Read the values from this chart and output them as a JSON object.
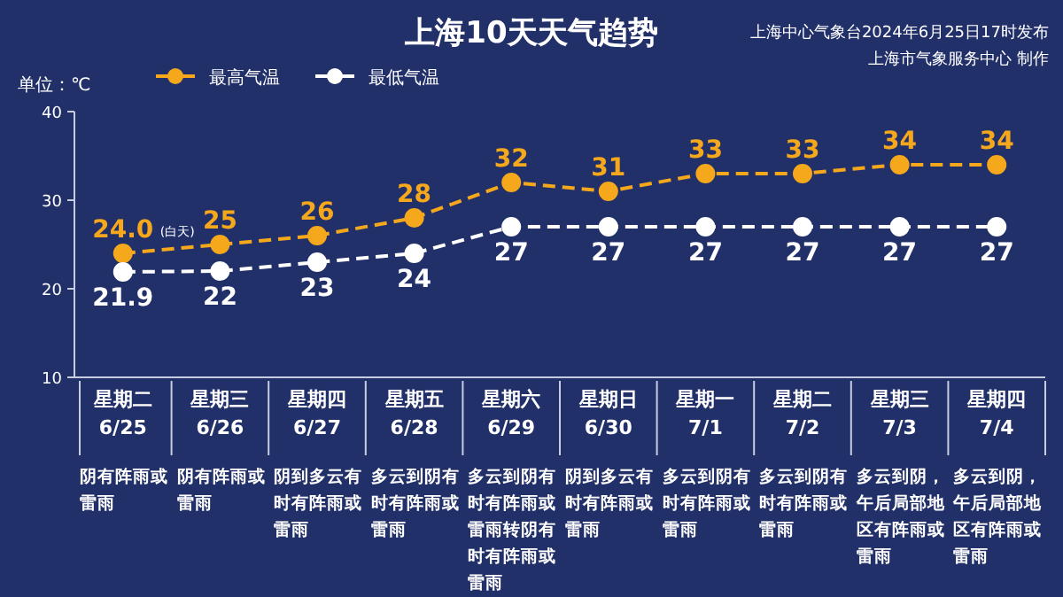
{
  "chart_data": {
    "type": "line",
    "title": "上海10天天气趋势",
    "ylabel": "单位：℃",
    "categories": [
      "星期二\n6/25",
      "星期三\n6/26",
      "星期四\n6/27",
      "星期五\n6/28",
      "星期六\n6/29",
      "星期日\n6/30",
      "星期一\n7/1",
      "星期二\n7/2",
      "星期三\n7/3",
      "星期四\n7/4"
    ],
    "series": [
      {
        "name": "最高气温",
        "color": "#f5a81c",
        "values": [
          24.0,
          25,
          26,
          28,
          32,
          31,
          33,
          33,
          34,
          34
        ],
        "value_labels": [
          "24.0",
          "25",
          "26",
          "28",
          "32",
          "31",
          "33",
          "33",
          "34",
          "34"
        ]
      },
      {
        "name": "最低气温",
        "color": "#ffffff",
        "values": [
          21.9,
          22,
          23,
          24,
          27,
          27,
          27,
          27,
          27,
          27
        ],
        "value_labels": [
          "21.9",
          "22",
          "23",
          "24",
          "27",
          "27",
          "27",
          "27",
          "27",
          "27"
        ]
      }
    ],
    "ylim": [
      10,
      40
    ],
    "yticks": [
      10,
      20,
      30,
      40
    ],
    "legend": "top",
    "marker": "circle",
    "line_style": "dashed",
    "annotations": [
      "上海中心气象台2024年6月25日17时发布",
      "上海市气象服务中心 制作",
      "(白天)",
      "阴有阵雨或雷雨",
      "阴有阵雨或雷雨",
      "阴到多云有时有阵雨或雷雨",
      "多云到阴有时有阵雨或雷雨",
      "多云到阴有时有阵雨或雷雨转阴有时有阵雨或雷雨",
      "阴到多云有时有阵雨或雷雨",
      "多云到阴有时有阵雨或雷雨",
      "多云到阴有时有阵雨或雷雨",
      "多云到阴，午后局部地区有阵雨或雷雨",
      "多云到阴，午后局部地区有阵雨或雷雨"
    ]
  }
}
